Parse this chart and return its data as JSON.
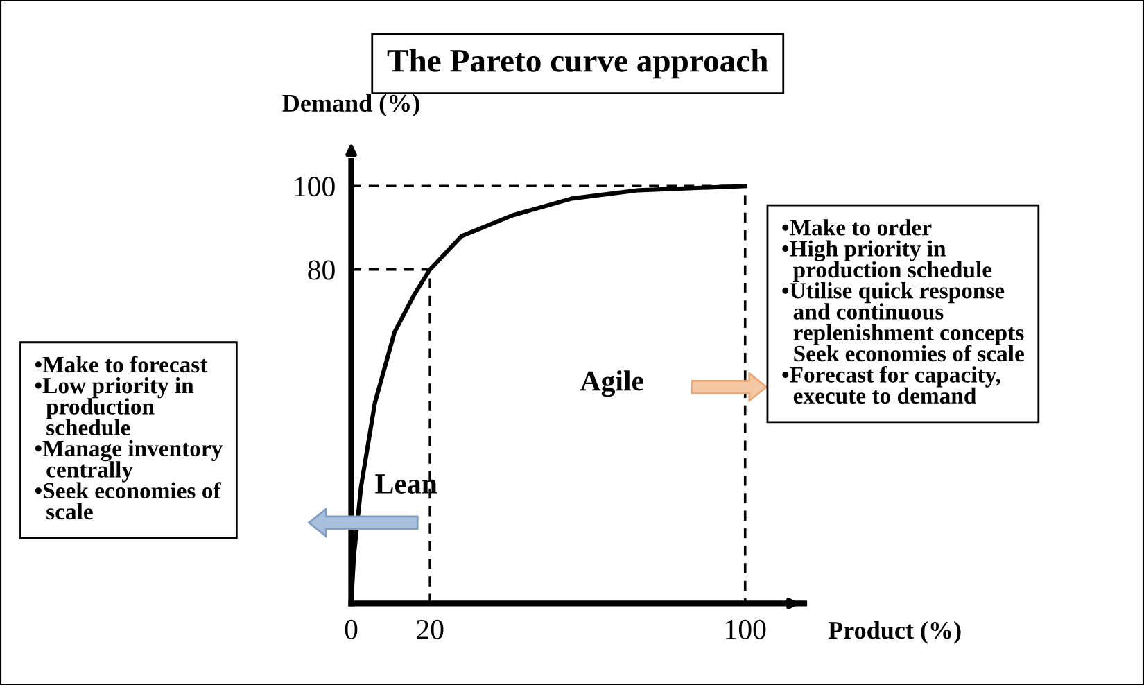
{
  "chart_data": {
    "type": "line",
    "title": "The Pareto curve approach",
    "xlabel": "Product (%)",
    "ylabel": "Demand (%)",
    "xlim": [
      0,
      115
    ],
    "ylim": [
      0,
      106
    ],
    "xticks": [
      0,
      20,
      100
    ],
    "yticks": [
      80,
      100
    ],
    "grid": false,
    "legend": false,
    "marker": "none",
    "series": [
      {
        "color": "#000000",
        "line_style": "solid",
        "x": [
          0,
          0.7,
          2.5,
          6,
          11,
          16,
          20,
          28,
          41,
          56,
          73,
          100
        ],
        "values": [
          0,
          11.6,
          28,
          48,
          65,
          74,
          80,
          88,
          93,
          97,
          99,
          100
        ]
      },
      {
        "color": "#000000",
        "line_style": "dashed",
        "x": [
          0,
          20,
          20
        ],
        "values": [
          80,
          80,
          0
        ]
      },
      {
        "color": "#000000",
        "line_style": "dashed",
        "x": [
          0,
          100,
          100
        ],
        "values": [
          100,
          100,
          0
        ]
      }
    ],
    "annotations": [
      "•Make to forecast\n•Low priority in\n  production\n  schedule\n•Manage inventory\n  centrally\n•Seek economies of\n  scale",
      "•Make to order\n•High priority in\n  production schedule\n•Utilise quick response\n  and continuous\n  replenishment concepts\n  Seek economies of scale\n•Forecast for capacity,\n  execute to demand",
      "Agile",
      "Lean"
    ]
  }
}
